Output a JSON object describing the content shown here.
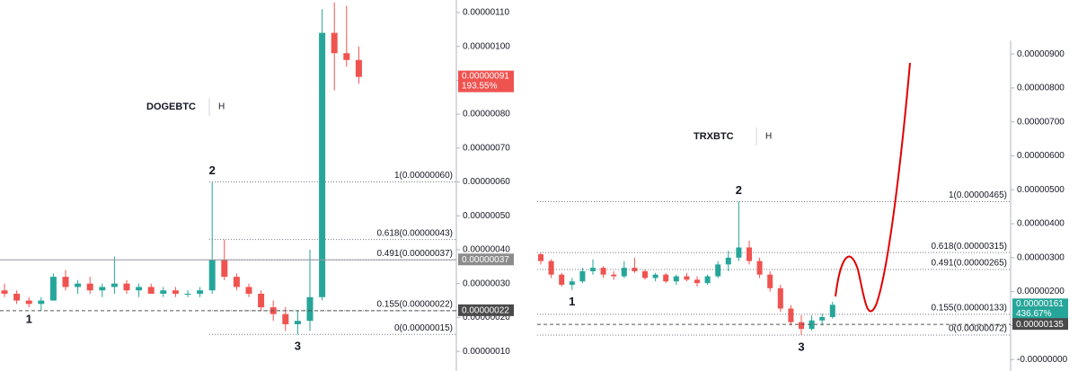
{
  "chart_data": [
    {
      "type": "candlestick",
      "symbol": "DOGEBTC",
      "interval": "H",
      "up_color": "#26a69a",
      "down_color": "#ef5350",
      "open": [
        2.8e-07,
        2.7e-07,
        2.5e-07,
        2.4e-07,
        2.5e-07,
        3.2e-07,
        2.9e-07,
        3e-07,
        2.8e-07,
        2.9e-07,
        3e-07,
        2.8e-07,
        2.9e-07,
        2.7e-07,
        2.8e-07,
        2.7e-07,
        2.7e-07,
        2.8e-07,
        3.7e-07,
        3.2e-07,
        2.9e-07,
        2.7e-07,
        2.3e-07,
        2.1e-07,
        1.8e-07,
        1.9e-07,
        2.6e-07,
        1.04e-06,
        9.8e-07,
        9.6e-07
      ],
      "high": [
        3e-07,
        2.8e-07,
        2.6e-07,
        2.6e-07,
        3.3e-07,
        3.4e-07,
        3.1e-07,
        3.2e-07,
        3e-07,
        3.8e-07,
        3.1e-07,
        3e-07,
        3e-07,
        2.9e-07,
        2.9e-07,
        2.8e-07,
        2.9e-07,
        6e-07,
        4.3e-07,
        3.3e-07,
        3e-07,
        2.8e-07,
        2.5e-07,
        2.3e-07,
        2.2e-07,
        4e-07,
        1.11e-06,
        1.13e-06,
        1.12e-06,
        1e-06
      ],
      "low": [
        2.6e-07,
        2.4e-07,
        2.3e-07,
        2.2e-07,
        2.5e-07,
        2.8e-07,
        2.7e-07,
        2.7e-07,
        2.6e-07,
        2.7e-07,
        2.7e-07,
        2.6e-07,
        2.7e-07,
        2.6e-07,
        2.6e-07,
        2.6e-07,
        2.6e-07,
        2.7e-07,
        3.1e-07,
        2.8e-07,
        2.6e-07,
        2.2e-07,
        1.9e-07,
        1.6e-07,
        1.5e-07,
        1.6e-07,
        2.5e-07,
        8.7e-07,
        9.4e-07,
        8.9e-07
      ],
      "close": [
        2.7e-07,
        2.5e-07,
        2.4e-07,
        2.5e-07,
        3.2e-07,
        2.9e-07,
        3e-07,
        2.8e-07,
        2.9e-07,
        3e-07,
        2.8e-07,
        2.9e-07,
        2.7e-07,
        2.8e-07,
        2.7e-07,
        2.7e-07,
        2.8e-07,
        3.7e-07,
        3.2e-07,
        2.9e-07,
        2.7e-07,
        2.3e-07,
        2.1e-07,
        1.8e-07,
        1.9e-07,
        2.6e-07,
        1.04e-06,
        9.8e-07,
        9.6e-07,
        9.1e-07
      ],
      "ylim": [
        4.2e-08,
        1.137e-06
      ],
      "yticks": [
        {
          "value": 1e-07,
          "label": "0.00000010"
        },
        {
          "value": 2e-07,
          "label": "0.00000020"
        },
        {
          "value": 3e-07,
          "label": "0.00000030"
        },
        {
          "value": 4e-07,
          "label": "0.00000040"
        },
        {
          "value": 5e-07,
          "label": "0.00000050"
        },
        {
          "value": 6e-07,
          "label": "0.00000060"
        },
        {
          "value": 7e-07,
          "label": "0.00000070"
        },
        {
          "value": 8e-07,
          "label": "0.00000080"
        },
        {
          "value": 9e-07,
          "label": "0.00000090"
        },
        {
          "value": 1e-06,
          "label": "0.00000100"
        },
        {
          "value": 1.1e-06,
          "label": "0.00000110"
        }
      ],
      "fib_levels": [
        {
          "value": 6e-07,
          "label": "1(0.00000060)"
        },
        {
          "value": 4.3e-07,
          "label": "0.618(0.00000043)"
        },
        {
          "value": 3.7e-07,
          "label": "0.491(0.00000037)"
        },
        {
          "value": 2.2e-07,
          "label": "0.155(0.00000022)"
        },
        {
          "value": 1.5e-07,
          "label": "0(0.00000015)"
        }
      ],
      "last_price": {
        "value": 9.1e-07,
        "label": "0.00000091"
      },
      "change_label": "193.55%",
      "marker_prices": [
        {
          "value": 3.7e-07,
          "label": "0.00000037"
        },
        {
          "value": 2.2e-07,
          "label": "0.00000022"
        }
      ],
      "pivots": [
        "1",
        "2",
        "3"
      ]
    },
    {
      "type": "candlestick",
      "symbol": "TRXBTC",
      "interval": "H",
      "up_color": "#26a69a",
      "down_color": "#ef5350",
      "open": [
        3.1e-06,
        2.9e-06,
        2.5e-06,
        2.2e-06,
        2.3e-06,
        2.6e-06,
        2.7e-06,
        2.5e-06,
        2.45e-06,
        2.7e-06,
        2.6e-06,
        2.4e-06,
        2.5e-06,
        2.3e-06,
        2.45e-06,
        2.35e-06,
        2.25e-06,
        2.45e-06,
        2.8e-06,
        3e-06,
        3.3e-06,
        2.9e-06,
        2.5e-06,
        2.1e-06,
        1.5e-06,
        1.1e-06,
        9e-07,
        1.15e-06,
        1.25e-06
      ],
      "high": [
        3.15e-06,
        2.95e-06,
        2.55e-06,
        2.4e-06,
        2.7e-06,
        2.95e-06,
        2.75e-06,
        2.6e-06,
        2.9e-06,
        3e-06,
        2.65e-06,
        2.55e-06,
        2.55e-06,
        2.5e-06,
        2.55e-06,
        2.45e-06,
        2.5e-06,
        2.9e-06,
        3.2e-06,
        4.65e-06,
        3.5e-06,
        3e-06,
        2.6e-06,
        2.2e-06,
        1.6e-06,
        1.3e-06,
        1.3e-06,
        1.35e-06,
        1.7e-06
      ],
      "low": [
        2.8e-06,
        2.4e-06,
        2.15e-06,
        2.05e-06,
        2.25e-06,
        2.5e-06,
        2.4e-06,
        2.35e-06,
        2.4e-06,
        2.55e-06,
        2.35e-06,
        2.3e-06,
        2.25e-06,
        2.2e-06,
        2.3e-06,
        2.15e-06,
        2.2e-06,
        2.4e-06,
        2.6e-06,
        2.9e-06,
        2.8e-06,
        2.4e-06,
        2e-06,
        1.4e-06,
        1e-06,
        7.2e-07,
        8.5e-07,
        1e-06,
        1.2e-06
      ],
      "close": [
        2.9e-06,
        2.5e-06,
        2.2e-06,
        2.3e-06,
        2.6e-06,
        2.7e-06,
        2.5e-06,
        2.45e-06,
        2.7e-06,
        2.6e-06,
        2.4e-06,
        2.5e-06,
        2.3e-06,
        2.45e-06,
        2.35e-06,
        2.25e-06,
        2.45e-06,
        2.8e-06,
        3e-06,
        3.3e-06,
        2.9e-06,
        2.5e-06,
        2.1e-06,
        1.5e-06,
        1.1e-06,
        9e-07,
        1.15e-06,
        1.25e-06,
        1.61e-06
      ],
      "ylim": [
        -3.4e-07,
        9.4e-06
      ],
      "yticks": [
        {
          "value": 0,
          "label": "-0.00000000"
        },
        {
          "value": 1e-06,
          "label": "0.00000100"
        },
        {
          "value": 2e-06,
          "label": "0.00000200"
        },
        {
          "value": 3e-06,
          "label": "0.00000300"
        },
        {
          "value": 4e-06,
          "label": "0.00000400"
        },
        {
          "value": 5e-06,
          "label": "0.00000500"
        },
        {
          "value": 6e-06,
          "label": "0.00000600"
        },
        {
          "value": 7e-06,
          "label": "0.00000700"
        },
        {
          "value": 8e-06,
          "label": "0.00000800"
        },
        {
          "value": 9e-06,
          "label": "0.00000900"
        }
      ],
      "fib_levels": [
        {
          "value": 4.65e-06,
          "label": "1(0.00000465)"
        },
        {
          "value": 3.15e-06,
          "label": "0.618(0.00000315)"
        },
        {
          "value": 2.65e-06,
          "label": "0.491(0.00000265)"
        },
        {
          "value": 1.33e-06,
          "label": "0.155(0.00000133)"
        },
        {
          "value": 7.2e-07,
          "label": "0(0.00000072)"
        }
      ],
      "last_price": {
        "value": 1.61e-06,
        "label": "0.00000161"
      },
      "change_label": "436.67%",
      "marker_prices": [
        {
          "value": 1.35e-06,
          "label": "0.00000135"
        }
      ],
      "pivots": [
        "1",
        "2",
        "3"
      ]
    }
  ]
}
